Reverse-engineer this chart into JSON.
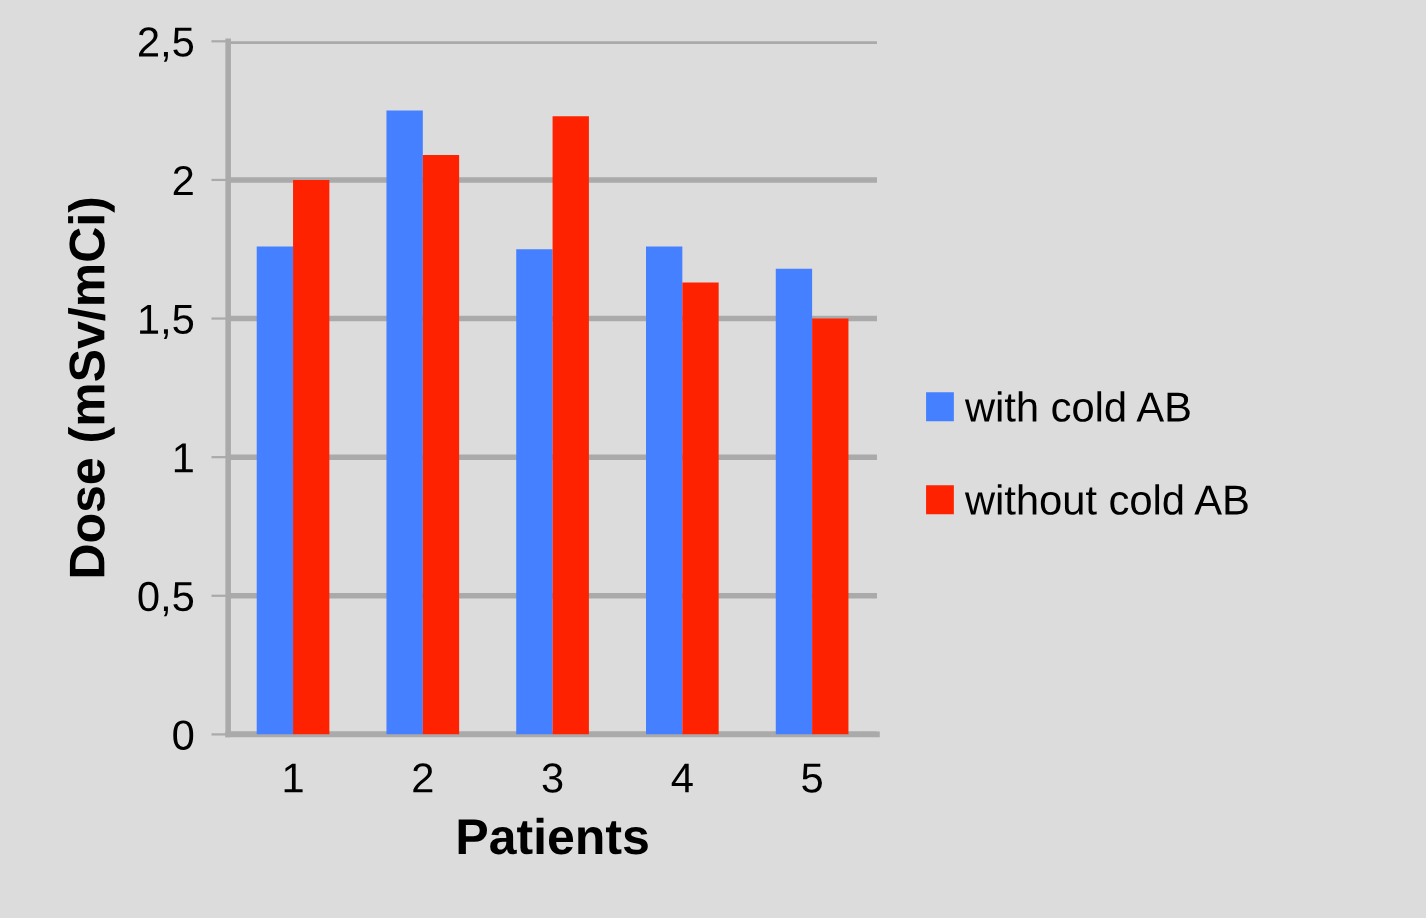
{
  "chart_data": {
    "type": "bar",
    "xlabel": "Patients",
    "ylabel": "Dose (mSv/mCi)",
    "categories": [
      "1",
      "2",
      "3",
      "4",
      "5"
    ],
    "series": [
      {
        "name": "with cold AB",
        "color": "#4480ff",
        "values": [
          1.76,
          2.25,
          1.75,
          1.76,
          1.68
        ]
      },
      {
        "name": "without cold AB",
        "color": "#ff2200",
        "values": [
          2.0,
          2.09,
          2.23,
          1.63,
          1.5
        ]
      }
    ],
    "ylim": [
      0,
      2.5
    ],
    "yticks": [
      0,
      {
        "value": 0.5,
        "label": "0,5"
      },
      1,
      {
        "value": 1.5,
        "label": "1,5"
      },
      2,
      {
        "value": 2.5,
        "label": "2,5"
      }
    ],
    "grid": "y",
    "legend": "right"
  }
}
